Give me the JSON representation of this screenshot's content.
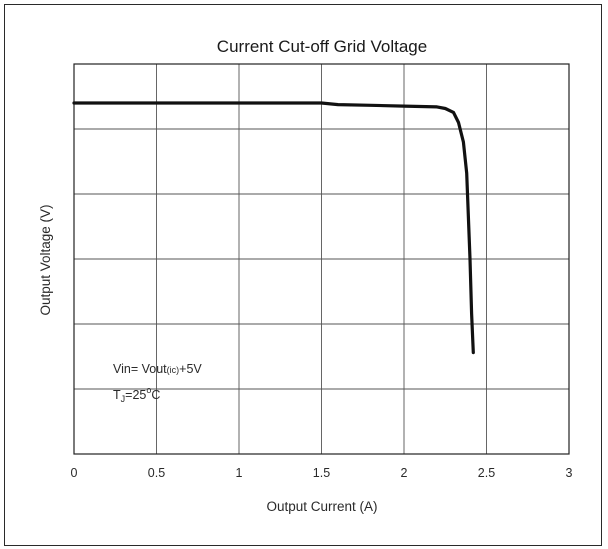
{
  "chart_data": {
    "type": "line",
    "title": "Current Cut-off Grid Voltage",
    "xlabel": "Output Current (A)",
    "ylabel": "Output Voltage (V)",
    "xlim": [
      0,
      3
    ],
    "ylim": [
      0,
      5
    ],
    "x_ticks": [
      "0",
      "0.5",
      "1",
      "1.5",
      "2",
      "2.5",
      "3"
    ],
    "x_tick_values": [
      0,
      0.5,
      1,
      1.5,
      2,
      2.5,
      3
    ],
    "y_ticks_shown": false,
    "grid": true,
    "series": [
      {
        "x": [
          0,
          0.5,
          1.0,
          1.5,
          1.6,
          1.8,
          2.0,
          2.2,
          2.25,
          2.3,
          2.33,
          2.36,
          2.38,
          2.4,
          2.41,
          2.42
        ],
        "y": [
          4.5,
          4.5,
          4.5,
          4.5,
          4.48,
          4.47,
          4.46,
          4.45,
          4.43,
          4.38,
          4.25,
          4.0,
          3.6,
          2.5,
          1.8,
          1.3
        ]
      }
    ],
    "annotations": {
      "vin_main": "Vin= Vout",
      "vin_sub": "(ic)",
      "vin_rest": "+5V",
      "tj_main": "T",
      "tj_sub": "J",
      "tj_value": "=25",
      "tj_sup": "o",
      "tj_unit": "C"
    }
  }
}
